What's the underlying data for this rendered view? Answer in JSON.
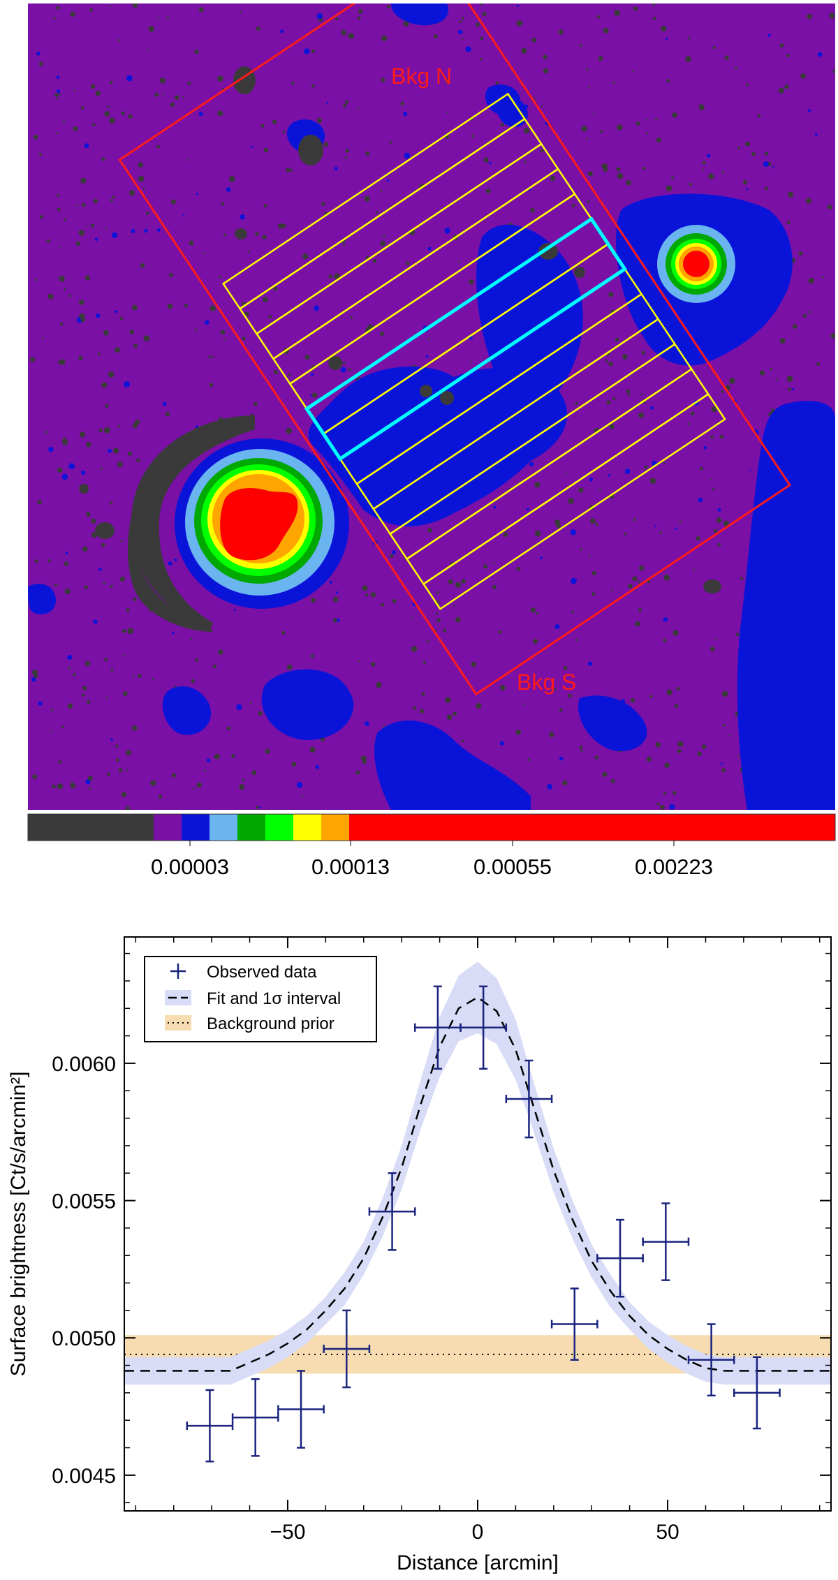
{
  "colors": {
    "background_field": "#7a10a6",
    "emission_blue": "#0a14d8",
    "region_box": "#ff1a1a",
    "strip_box": "#ffff00",
    "peak_strip_box": "#00ffff",
    "data_marker": "#1a237e",
    "fit_band": "#d9dcf6",
    "background_band": "#f6dcb0"
  },
  "image_panel": {
    "labels": {
      "bkg_north": "Bkg N",
      "bkg_south": "Bkg S"
    },
    "colorbar": {
      "stops": [
        "#3a3a3a",
        "#7a10a6",
        "#0a14d8",
        "#6ab4f0",
        "#00a800",
        "#00ff00",
        "#ffff00",
        "#ffa500",
        "#ff0000"
      ],
      "tick_labels": [
        "0.00003",
        "0.00013",
        "0.00055",
        "0.00223"
      ]
    }
  },
  "chart_data": {
    "type": "scatter",
    "xlabel": "Distance [arcmin]",
    "ylabel": "Surface brightness [Ct/s/arcmin²]",
    "xlim": [
      -93,
      93
    ],
    "ylim": [
      0.00437,
      0.00646
    ],
    "x_ticks": [
      -50,
      0,
      50
    ],
    "x_tick_labels": [
      "−50",
      "0",
      "50"
    ],
    "y_ticks": [
      0.0045,
      0.005,
      0.0055,
      0.006
    ],
    "y_tick_labels": [
      "0.0045",
      "0.0050",
      "0.0055",
      "0.0060"
    ],
    "legend": {
      "placement": "top-left",
      "entries": [
        {
          "label": "Observed data",
          "symbol": "cross"
        },
        {
          "label": "Fit and 1σ interval",
          "symbol": "dashed-band"
        },
        {
          "label": "Background prior",
          "symbol": "dotted-band"
        }
      ]
    },
    "observed_data": [
      {
        "x": -70.5,
        "xerr": 6,
        "y": 0.00468,
        "yerr": 0.00013
      },
      {
        "x": -58.5,
        "xerr": 6,
        "y": 0.00471,
        "yerr": 0.00014
      },
      {
        "x": -46.5,
        "xerr": 6,
        "y": 0.00474,
        "yerr": 0.00014
      },
      {
        "x": -34.5,
        "xerr": 6,
        "y": 0.00496,
        "yerr": 0.00014
      },
      {
        "x": -22.5,
        "xerr": 6,
        "y": 0.00546,
        "yerr": 0.00014
      },
      {
        "x": -10.5,
        "xerr": 6,
        "y": 0.00613,
        "yerr": 0.00015
      },
      {
        "x": 1.5,
        "xerr": 6,
        "y": 0.00613,
        "yerr": 0.00015
      },
      {
        "x": 13.5,
        "xerr": 6,
        "y": 0.00587,
        "yerr": 0.00014
      },
      {
        "x": 25.5,
        "xerr": 6,
        "y": 0.00505,
        "yerr": 0.00013
      },
      {
        "x": 37.5,
        "xerr": 6,
        "y": 0.00529,
        "yerr": 0.00014
      },
      {
        "x": 49.5,
        "xerr": 6,
        "y": 0.00535,
        "yerr": 0.00014
      },
      {
        "x": 61.5,
        "xerr": 6,
        "y": 0.00492,
        "yerr": 0.00013
      },
      {
        "x": 73.5,
        "xerr": 6,
        "y": 0.0048,
        "yerr": 0.00013
      }
    ],
    "fit_curve": {
      "x": [
        -93,
        -80,
        -65,
        -60,
        -55,
        -50,
        -45,
        -40,
        -35,
        -30,
        -25,
        -20,
        -15,
        -10,
        -5,
        0,
        5,
        10,
        15,
        20,
        25,
        30,
        35,
        40,
        45,
        50,
        55,
        60,
        65,
        70,
        80,
        93
      ],
      "y": [
        0.00488,
        0.00488,
        0.00488,
        0.00491,
        0.00494,
        0.00498,
        0.00503,
        0.0051,
        0.00518,
        0.00529,
        0.00544,
        0.00562,
        0.00585,
        0.00606,
        0.0062,
        0.00624,
        0.00619,
        0.00605,
        0.00583,
        0.00561,
        0.00543,
        0.00528,
        0.00517,
        0.00508,
        0.00501,
        0.00496,
        0.00492,
        0.00489,
        0.00488,
        0.00488,
        0.00488,
        0.00488
      ],
      "half_width": [
        5e-05,
        5e-05,
        5e-05,
        5e-05,
        5e-05,
        5e-05,
        5e-05,
        5e-05,
        6e-05,
        6e-05,
        7e-05,
        8e-05,
        9e-05,
        0.00011,
        0.00012,
        0.00013,
        0.00012,
        0.00011,
        9e-05,
        8e-05,
        7e-05,
        6e-05,
        6e-05,
        5e-05,
        5e-05,
        5e-05,
        5e-05,
        5e-05,
        5e-05,
        5e-05,
        5e-05,
        5e-05
      ]
    },
    "background_prior": {
      "value": 0.00494,
      "low": 0.00487,
      "high": 0.00501
    }
  }
}
